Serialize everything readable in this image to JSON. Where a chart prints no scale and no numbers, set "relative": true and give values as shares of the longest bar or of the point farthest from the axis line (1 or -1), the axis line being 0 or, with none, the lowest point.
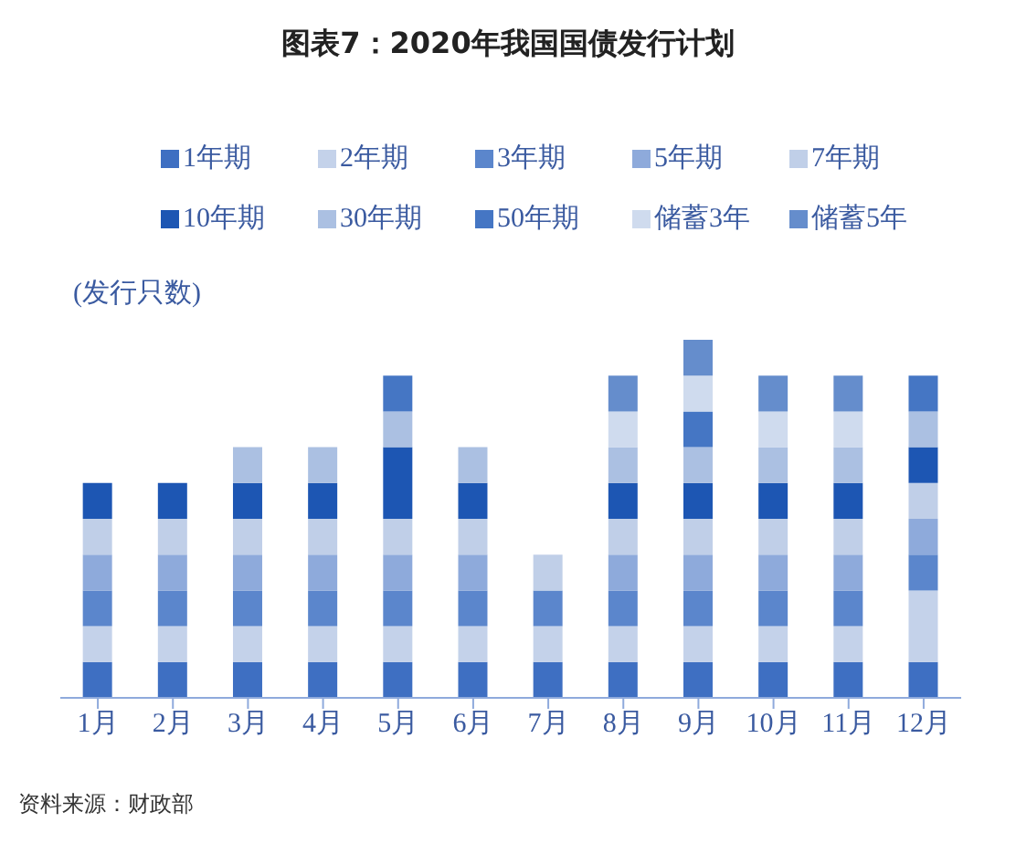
{
  "chart_data": {
    "type": "bar",
    "title": "图表7：2020年我国国债发行计划",
    "ylabel": "(发行只数)",
    "annotations": [
      "资料来源：财政部"
    ],
    "stacked": true,
    "relative": true,
    "legend": "top",
    "grid": false,
    "categories": [
      "1月",
      "2月",
      "3月",
      "4月",
      "5月",
      "6月",
      "7月",
      "8月",
      "9月",
      "10月",
      "11月",
      "12月"
    ],
    "series": [
      {
        "name": "1年期",
        "color": "#3e6fc2",
        "values": [
          0.1,
          0.1,
          0.1,
          0.1,
          0.1,
          0.1,
          0.1,
          0.1,
          0.1,
          0.1,
          0.1,
          0.1
        ]
      },
      {
        "name": "2年期",
        "color": "#c4d2ea",
        "values": [
          0.1,
          0.1,
          0.1,
          0.1,
          0.1,
          0.1,
          0.1,
          0.1,
          0.1,
          0.1,
          0.1,
          0.2
        ]
      },
      {
        "name": "3年期",
        "color": "#5b86cc",
        "values": [
          0.1,
          0.1,
          0.1,
          0.1,
          0.1,
          0.1,
          0.1,
          0.1,
          0.1,
          0.1,
          0.1,
          0.1
        ]
      },
      {
        "name": "5年期",
        "color": "#8eaadb",
        "values": [
          0.1,
          0.1,
          0.1,
          0.1,
          0.1,
          0.1,
          0,
          0.1,
          0.1,
          0.1,
          0.1,
          0.1
        ]
      },
      {
        "name": "7年期",
        "color": "#c0cfe8",
        "values": [
          0.1,
          0.1,
          0.1,
          0.1,
          0.1,
          0.1,
          0.1,
          0.1,
          0.1,
          0.1,
          0.1,
          0.1
        ]
      },
      {
        "name": "10年期",
        "color": "#1d56b3",
        "values": [
          0.1,
          0.1,
          0.1,
          0.1,
          0.2,
          0.1,
          0,
          0.1,
          0.1,
          0.1,
          0.1,
          0.1
        ]
      },
      {
        "name": "30年期",
        "color": "#abc0e2",
        "values": [
          0,
          0,
          0.1,
          0.1,
          0.1,
          0.1,
          0,
          0.1,
          0.1,
          0.1,
          0.1,
          0.1
        ]
      },
      {
        "name": "50年期",
        "color": "#4576c4",
        "values": [
          0,
          0,
          0,
          0,
          0.1,
          0,
          0,
          0,
          0.1,
          0,
          0,
          0.1
        ]
      },
      {
        "name": "储蓄3年",
        "color": "#cfdbee",
        "values": [
          0,
          0,
          0,
          0,
          0,
          0,
          0,
          0.1,
          0.1,
          0.1,
          0.1,
          0
        ]
      },
      {
        "name": "储蓄5年",
        "color": "#658dcc",
        "values": [
          0,
          0,
          0,
          0,
          0,
          0,
          0,
          0.1,
          0.1,
          0.1,
          0.1,
          0
        ]
      }
    ]
  }
}
